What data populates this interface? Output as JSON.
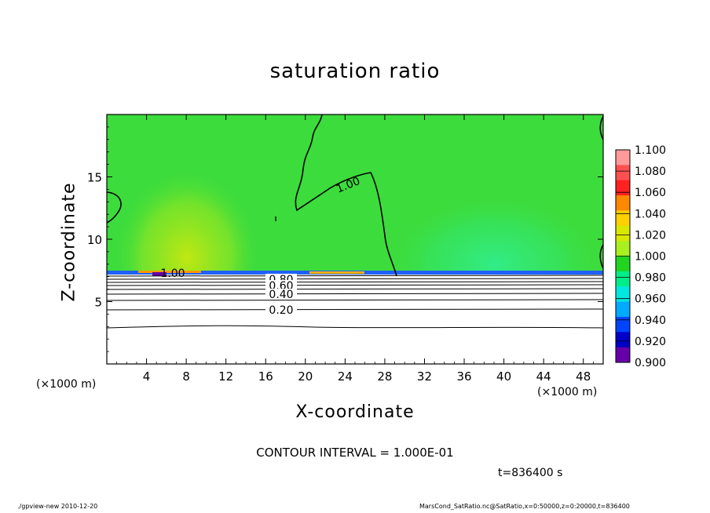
{
  "chart_data": {
    "type": "heatmap",
    "title": "saturation ratio",
    "xlabel": "X-coordinate",
    "ylabel": "Z-coordinate",
    "x_unit_left": "(×1000 m)",
    "x_unit_right": "(×1000 m)",
    "xlim": [
      0,
      50
    ],
    "ylim": [
      0,
      20
    ],
    "x_ticks": [
      4,
      8,
      12,
      16,
      20,
      24,
      28,
      32,
      36,
      40,
      44,
      48
    ],
    "y_ticks": [
      5,
      10,
      15
    ],
    "colorbar": {
      "levels": [
        "1.100",
        "1.080",
        "1.060",
        "1.040",
        "1.020",
        "1.000",
        "0.980",
        "0.960",
        "0.940",
        "0.920",
        "0.900"
      ],
      "colors": [
        "#ff9a9a",
        "#ff5050",
        "#ff2020",
        "#ff8800",
        "#ffd000",
        "#d8e800",
        "#a8f020",
        "#20d420",
        "#00ee88",
        "#00e8e0",
        "#00aaff",
        "#0044ff",
        "#0000c8",
        "#6600a8"
      ]
    },
    "field": {
      "lower_value": "1.00",
      "upper_color": "#3cdc3c",
      "interface_z": 7.3,
      "lower_color": "#ffffff"
    },
    "contour_labels": [
      "1.00",
      "1.00",
      "0.80",
      "0.60",
      "0.40",
      "0.20"
    ],
    "contour_interval_text": "CONTOUR INTERVAL = 1.000E-01",
    "time_text": "t=836400 s"
  },
  "footer": {
    "left": "./gpview-new   2010-12-20",
    "right": "MarsCond_SatRatio.nc@SatRatio,x=0:50000,z=0:20000,t=836400"
  }
}
